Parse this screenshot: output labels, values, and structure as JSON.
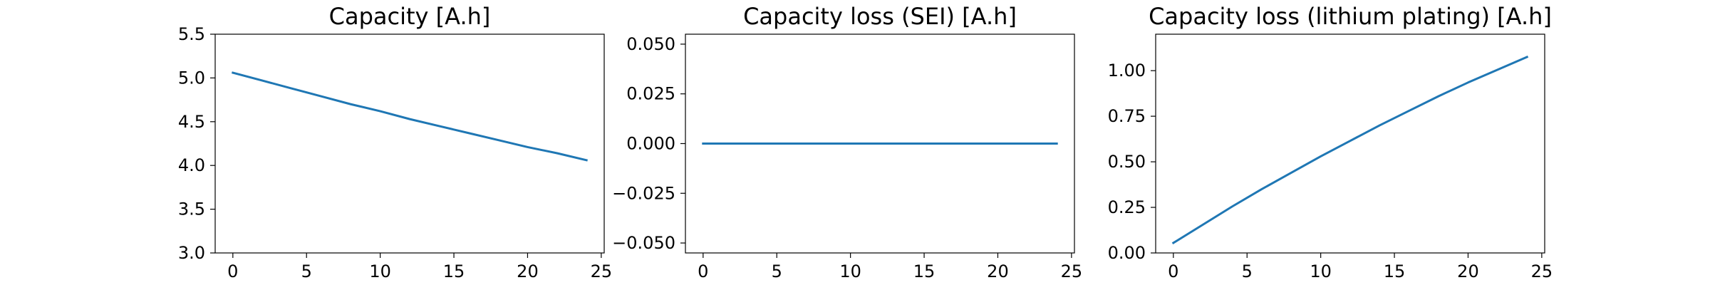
{
  "chart_data": [
    {
      "type": "line",
      "title": "Capacity [A.h]",
      "xlabel": "",
      "ylabel": "",
      "xlim": [
        -1.2,
        25.2
      ],
      "ylim": [
        3.0,
        5.5
      ],
      "xticks": [
        0,
        5,
        10,
        15,
        20,
        25
      ],
      "xtick_labels": [
        "0",
        "5",
        "10",
        "15",
        "20",
        "25"
      ],
      "yticks": [
        3.0,
        3.5,
        4.0,
        4.5,
        5.0,
        5.5
      ],
      "ytick_labels": [
        "3.0",
        "3.5",
        "4.0",
        "4.5",
        "5.0",
        "5.5"
      ],
      "grid": false,
      "color": "#1f77b4",
      "series": [
        {
          "x": [
            0,
            2,
            4,
            6,
            8,
            10,
            12,
            14,
            16,
            18,
            20,
            22,
            24
          ],
          "y": [
            5.06,
            4.97,
            4.88,
            4.79,
            4.7,
            4.62,
            4.53,
            4.45,
            4.37,
            4.29,
            4.21,
            4.14,
            4.06
          ]
        }
      ]
    },
    {
      "type": "line",
      "title": "Capacity loss (SEI) [A.h]",
      "xlabel": "",
      "ylabel": "",
      "xlim": [
        -1.2,
        25.2
      ],
      "ylim": [
        -0.055,
        0.055
      ],
      "xticks": [
        0,
        5,
        10,
        15,
        20,
        25
      ],
      "xtick_labels": [
        "0",
        "5",
        "10",
        "15",
        "20",
        "25"
      ],
      "yticks": [
        -0.05,
        -0.025,
        0.0,
        0.025,
        0.05
      ],
      "ytick_labels": [
        "−0.050",
        "−0.025",
        "0.000",
        "0.025",
        "0.050"
      ],
      "grid": false,
      "color": "#1f77b4",
      "series": [
        {
          "x": [
            0,
            24
          ],
          "y": [
            0.0,
            0.0
          ]
        }
      ]
    },
    {
      "type": "line",
      "title": "Capacity loss (lithium plating) [A.h]",
      "xlabel": "",
      "ylabel": "",
      "xlim": [
        -1.2,
        25.2
      ],
      "ylim": [
        0.0,
        1.2
      ],
      "xticks": [
        0,
        5,
        10,
        15,
        20,
        25
      ],
      "xtick_labels": [
        "0",
        "5",
        "10",
        "15",
        "20",
        "25"
      ],
      "yticks": [
        0.0,
        0.25,
        0.5,
        0.75,
        1.0
      ],
      "ytick_labels": [
        "0.00",
        "0.25",
        "0.50",
        "0.75",
        "1.00"
      ],
      "grid": false,
      "color": "#1f77b4",
      "series": [
        {
          "x": [
            0,
            2,
            4,
            6,
            8,
            10,
            12,
            14,
            16,
            18,
            20,
            22,
            24
          ],
          "y": [
            0.055,
            0.155,
            0.255,
            0.35,
            0.44,
            0.53,
            0.615,
            0.7,
            0.78,
            0.86,
            0.935,
            1.005,
            1.075
          ]
        }
      ]
    }
  ]
}
